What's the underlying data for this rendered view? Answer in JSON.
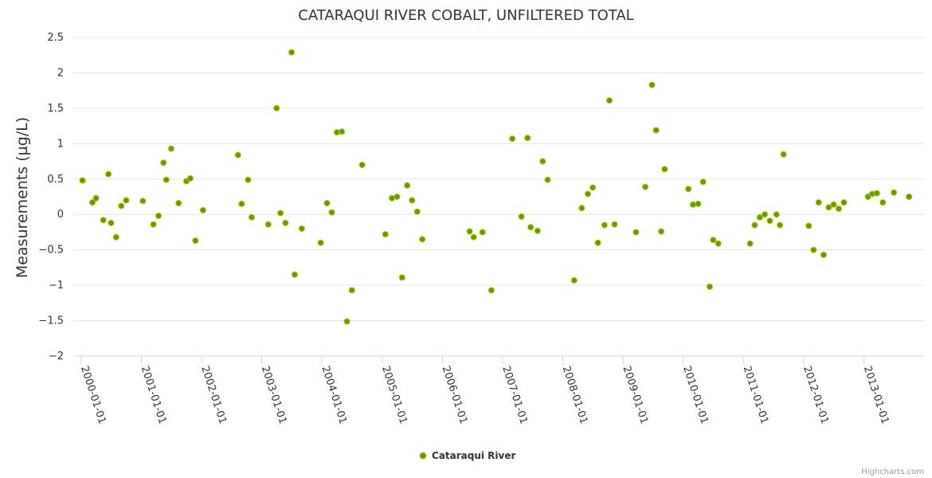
{
  "chart_data": {
    "type": "scatter",
    "title": "CATARAQUI RIVER COBALT, UNFILTERED TOTAL",
    "ylabel": "Measurements (µg/L)",
    "xlabel": "",
    "ylim": [
      -2,
      2.5
    ],
    "yticks": [
      2.5,
      2,
      1.5,
      1,
      0.5,
      0,
      -0.5,
      -1,
      -1.5,
      -2
    ],
    "ytick_labels": [
      "2.5",
      "2",
      "1.5",
      "1",
      "0.5",
      "0",
      "−0.5",
      "−1",
      "−1.5",
      "−2"
    ],
    "xlim": [
      "1999-11-15",
      "2013-12-31"
    ],
    "xticks": [
      "2000-01-01",
      "2001-01-01",
      "2002-01-01",
      "2003-01-01",
      "2004-01-01",
      "2005-01-01",
      "2006-01-01",
      "2007-01-01",
      "2008-01-01",
      "2009-01-01",
      "2010-01-01",
      "2011-01-01",
      "2012-01-01",
      "2013-01-01"
    ],
    "grid": true,
    "legend": "bottom-center",
    "credits": "Highcharts.com",
    "marker_color": "#5a9e0f",
    "series": [
      {
        "name": "Cataraqui River",
        "points": [
          [
            "2000-01-10",
            0.48
          ],
          [
            "2000-03-10",
            0.17
          ],
          [
            "2000-04-01",
            0.23
          ],
          [
            "2000-05-15",
            -0.08
          ],
          [
            "2000-06-15",
            0.57
          ],
          [
            "2000-07-01",
            -0.12
          ],
          [
            "2000-08-01",
            -0.32
          ],
          [
            "2000-09-01",
            0.12
          ],
          [
            "2000-10-01",
            0.2
          ],
          [
            "2001-01-10",
            0.19
          ],
          [
            "2001-03-15",
            -0.14
          ],
          [
            "2001-04-15",
            -0.02
          ],
          [
            "2001-05-15",
            0.73
          ],
          [
            "2001-06-01",
            0.49
          ],
          [
            "2001-07-01",
            0.93
          ],
          [
            "2001-08-15",
            0.16
          ],
          [
            "2001-10-01",
            0.47
          ],
          [
            "2001-10-25",
            0.51
          ],
          [
            "2001-11-25",
            -0.37
          ],
          [
            "2002-01-10",
            0.06
          ],
          [
            "2002-08-10",
            0.84
          ],
          [
            "2002-09-01",
            0.15
          ],
          [
            "2002-10-10",
            0.49
          ],
          [
            "2002-11-01",
            -0.04
          ],
          [
            "2003-02-10",
            -0.14
          ],
          [
            "2003-04-01",
            1.5
          ],
          [
            "2003-04-25",
            0.02
          ],
          [
            "2003-05-25",
            -0.12
          ],
          [
            "2003-07-01",
            2.29
          ],
          [
            "2003-07-20",
            -0.85
          ],
          [
            "2003-09-01",
            -0.2
          ],
          [
            "2003-12-25",
            -0.4
          ],
          [
            "2004-02-01",
            0.16
          ],
          [
            "2004-03-01",
            0.03
          ],
          [
            "2004-04-01",
            1.16
          ],
          [
            "2004-05-01",
            1.17
          ],
          [
            "2004-06-01",
            -1.51
          ],
          [
            "2004-07-01",
            -1.07
          ],
          [
            "2004-09-01",
            0.7
          ],
          [
            "2005-01-20",
            -0.28
          ],
          [
            "2005-03-01",
            0.23
          ],
          [
            "2005-04-01",
            0.25
          ],
          [
            "2005-05-01",
            -0.89
          ],
          [
            "2005-06-01",
            0.41
          ],
          [
            "2005-07-01",
            0.2
          ],
          [
            "2005-08-01",
            0.04
          ],
          [
            "2005-09-01",
            -0.35
          ],
          [
            "2006-06-15",
            -0.24
          ],
          [
            "2006-07-10",
            -0.32
          ],
          [
            "2006-09-01",
            -0.25
          ],
          [
            "2006-10-25",
            -1.07
          ],
          [
            "2007-03-01",
            1.07
          ],
          [
            "2007-04-25",
            -0.03
          ],
          [
            "2007-06-01",
            1.08
          ],
          [
            "2007-06-20",
            -0.18
          ],
          [
            "2007-08-01",
            -0.23
          ],
          [
            "2007-09-01",
            0.75
          ],
          [
            "2007-10-01",
            0.49
          ],
          [
            "2008-03-10",
            -0.93
          ],
          [
            "2008-04-25",
            0.09
          ],
          [
            "2008-06-01",
            0.29
          ],
          [
            "2008-07-01",
            0.38
          ],
          [
            "2008-08-01",
            -0.4
          ],
          [
            "2008-09-10",
            -0.15
          ],
          [
            "2008-10-10",
            1.61
          ],
          [
            "2008-11-10",
            -0.14
          ],
          [
            "2009-03-20",
            -0.25
          ],
          [
            "2009-05-15",
            0.39
          ],
          [
            "2009-06-25",
            1.83
          ],
          [
            "2009-07-20",
            1.19
          ],
          [
            "2009-08-20",
            -0.24
          ],
          [
            "2009-09-10",
            0.64
          ],
          [
            "2010-02-01",
            0.36
          ],
          [
            "2010-03-01",
            0.14
          ],
          [
            "2010-04-01",
            0.15
          ],
          [
            "2010-05-01",
            0.46
          ],
          [
            "2010-06-10",
            -1.02
          ],
          [
            "2010-07-01",
            -0.36
          ],
          [
            "2010-08-01",
            -0.41
          ],
          [
            "2011-02-10",
            -0.41
          ],
          [
            "2011-03-10",
            -0.15
          ],
          [
            "2011-04-10",
            -0.04
          ],
          [
            "2011-05-10",
            0.0
          ],
          [
            "2011-06-10",
            -0.09
          ],
          [
            "2011-07-20",
            0.0
          ],
          [
            "2011-08-10",
            -0.15
          ],
          [
            "2011-09-01",
            0.85
          ],
          [
            "2012-02-01",
            -0.16
          ],
          [
            "2012-03-01",
            -0.5
          ],
          [
            "2012-04-01",
            0.17
          ],
          [
            "2012-05-01",
            -0.57
          ],
          [
            "2012-06-01",
            0.1
          ],
          [
            "2012-07-01",
            0.14
          ],
          [
            "2012-08-01",
            0.08
          ],
          [
            "2012-09-01",
            0.17
          ],
          [
            "2013-01-25",
            0.25
          ],
          [
            "2013-02-20",
            0.29
          ],
          [
            "2013-03-20",
            0.3
          ],
          [
            "2013-04-25",
            0.17
          ],
          [
            "2013-07-01",
            0.31
          ],
          [
            "2013-10-01",
            0.25
          ]
        ]
      }
    ]
  }
}
